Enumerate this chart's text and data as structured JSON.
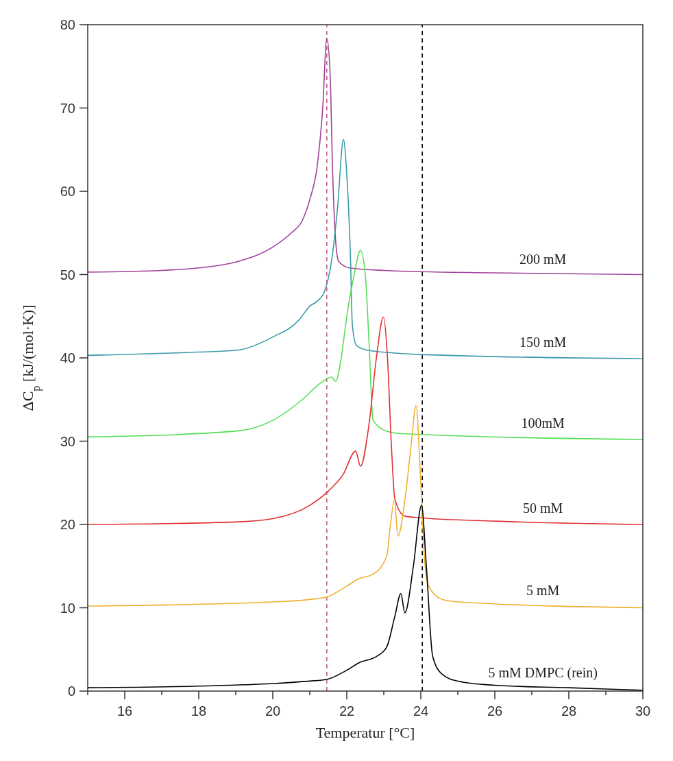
{
  "chart_data": {
    "type": "line",
    "xlabel": "Temperatur [°C]",
    "ylabel": "ΔC$_{p}$ [kJ/(mol·K)]",
    "xlim": [
      15,
      30
    ],
    "ylim": [
      0,
      80
    ],
    "xticks": [
      {
        "value": 15,
        "label": null
      },
      16,
      {
        "value": 17,
        "label": null
      },
      18,
      {
        "value": 19,
        "label": null
      },
      20,
      {
        "value": 21,
        "label": null
      },
      22,
      {
        "value": 23,
        "label": null
      },
      24,
      {
        "value": 25,
        "label": null
      },
      26,
      {
        "value": 27,
        "label": null
      },
      28,
      {
        "value": 29,
        "label": null
      },
      30
    ],
    "yticks": [
      0,
      10,
      20,
      30,
      40,
      50,
      60,
      70,
      80
    ],
    "grid": false,
    "marker": "none",
    "line_style": "solid",
    "ref_lines": [
      {
        "axis": "x",
        "value": 21.46,
        "color": "#c06080",
        "line_style": "dashed"
      },
      {
        "axis": "x",
        "value": 24.04,
        "color": "#000000",
        "line_style": "dashed"
      }
    ],
    "series": [
      {
        "name": "200 mM",
        "color": "#a0409a",
        "x": [
          15,
          17,
          18,
          19,
          20,
          20.5,
          20.8,
          21.0,
          21.2,
          21.35,
          21.46,
          21.55,
          21.62,
          21.7,
          21.78,
          22.07,
          23,
          26,
          30
        ],
        "values": [
          50.3,
          50.5,
          50.8,
          51.5,
          53.3,
          55,
          56.5,
          59,
          63,
          70,
          78.4,
          74,
          62,
          54,
          51.6,
          50.8,
          50.5,
          50.2,
          50.0
        ]
      },
      {
        "name": "150 mM",
        "color": "#3a9aaa",
        "x": [
          15,
          18,
          19,
          20,
          20.7,
          21.0,
          21.2,
          21.4,
          21.6,
          21.75,
          21.91,
          22.0,
          22.1,
          22.15,
          22.26,
          22.58,
          24,
          30
        ],
        "values": [
          40.3,
          40.7,
          40.9,
          42.5,
          44.5,
          46.2,
          46.8,
          48,
          52,
          58,
          66.2,
          62,
          52,
          44,
          41.5,
          40.9,
          40.4,
          39.9
        ]
      },
      {
        "name": "100mM",
        "color": "#55dd55",
        "x": [
          15,
          19,
          20,
          20.8,
          21.3,
          21.59,
          21.7,
          21.85,
          22.0,
          22.2,
          22.37,
          22.5,
          22.6,
          22.71,
          23.08,
          23.5,
          30
        ],
        "values": [
          30.5,
          31.2,
          32.5,
          35,
          37,
          37.7,
          37.2,
          40,
          45,
          50,
          52.9,
          50,
          42,
          32.5,
          31.2,
          30.9,
          30.2
        ]
      },
      {
        "name": "50 mM",
        "color": "#e03030",
        "x": [
          15,
          19,
          20,
          21,
          21.5,
          21.9,
          22.24,
          22.37,
          22.6,
          22.8,
          22.99,
          23.1,
          23.2,
          23.3,
          23.57,
          24,
          26,
          30
        ],
        "values": [
          20.0,
          20.3,
          20.7,
          22.3,
          24,
          26,
          28.8,
          27.0,
          32,
          40,
          44.9,
          40,
          30,
          23,
          21.0,
          20.8,
          20.4,
          20.0
        ]
      },
      {
        "name": "5 mM",
        "color": "#f0b030",
        "x": [
          15,
          20,
          21,
          21.46,
          22.0,
          22.33,
          22.7,
          23.08,
          23.18,
          23.29,
          23.38,
          23.6,
          23.75,
          23.87,
          24.0,
          24.1,
          24.2,
          24.58,
          25,
          30
        ],
        "values": [
          10.2,
          10.7,
          11.0,
          11.3,
          12.6,
          13.5,
          14.0,
          16.2,
          20,
          23.0,
          18.6,
          24,
          30,
          34.3,
          25,
          16,
          12.7,
          11.0,
          10.7,
          10.0
        ]
      },
      {
        "name": "5 mM DMPC (rein)",
        "color": "#000000",
        "x": [
          15,
          18,
          20,
          21,
          21.46,
          22.0,
          22.33,
          22.82,
          23.08,
          23.3,
          23.46,
          23.57,
          23.8,
          24.02,
          24.15,
          24.32,
          24.58,
          25.0,
          26,
          28,
          30
        ],
        "values": [
          0.4,
          0.6,
          0.9,
          1.2,
          1.4,
          2.5,
          3.4,
          4.2,
          5.3,
          9,
          11.7,
          9.4,
          15,
          22.3,
          15,
          4.2,
          2.0,
          1.2,
          0.7,
          0.4,
          0.1
        ]
      }
    ]
  }
}
